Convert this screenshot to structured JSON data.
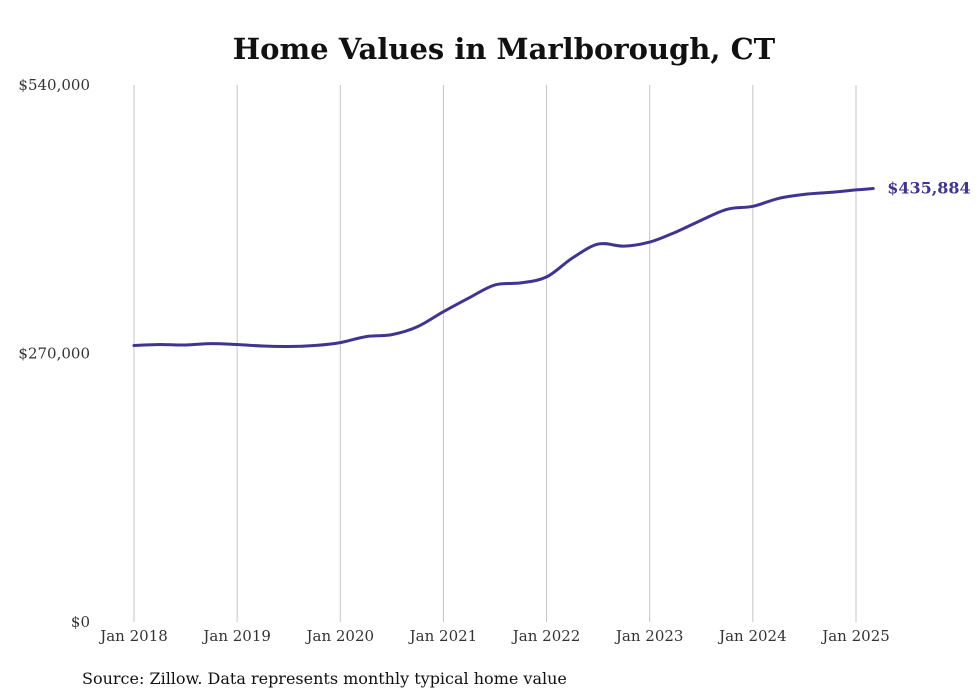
{
  "chart_data": {
    "type": "line",
    "title": "Home Values in Marlborough, CT",
    "source": "Source: Zillow. Data represents monthly typical home value",
    "ylim": [
      0,
      540000
    ],
    "y_ticks": [
      0,
      270000,
      540000
    ],
    "y_tick_labels": [
      "$0",
      "$270,000",
      "$540,000"
    ],
    "x_ticks": [
      "Jan 2018",
      "Jan 2019",
      "Jan 2020",
      "Jan 2021",
      "Jan 2022",
      "Jan 2023",
      "Jan 2024",
      "Jan 2025"
    ],
    "grid": "vertical",
    "color": "#3f3590",
    "end_label": "$435,884",
    "series": [
      {
        "x": [
          "2018-01",
          "2018-04",
          "2018-07",
          "2018-10",
          "2019-01",
          "2019-04",
          "2019-07",
          "2019-10",
          "2020-01",
          "2020-04",
          "2020-07",
          "2020-10",
          "2021-01",
          "2021-04",
          "2021-07",
          "2021-10",
          "2022-01",
          "2022-04",
          "2022-07",
          "2022-10",
          "2023-01",
          "2023-04",
          "2023-07",
          "2023-10",
          "2024-01",
          "2024-04",
          "2024-07",
          "2024-10",
          "2025-01",
          "2025-03"
        ],
        "y": [
          278000,
          279000,
          278500,
          280000,
          279000,
          277500,
          277000,
          278000,
          281000,
          287000,
          289000,
          297000,
          312000,
          326000,
          339000,
          341000,
          347000,
          366000,
          380000,
          378000,
          382000,
          392000,
          404000,
          415000,
          418000,
          426000,
          430000,
          432000,
          434500,
          435884
        ]
      }
    ]
  }
}
